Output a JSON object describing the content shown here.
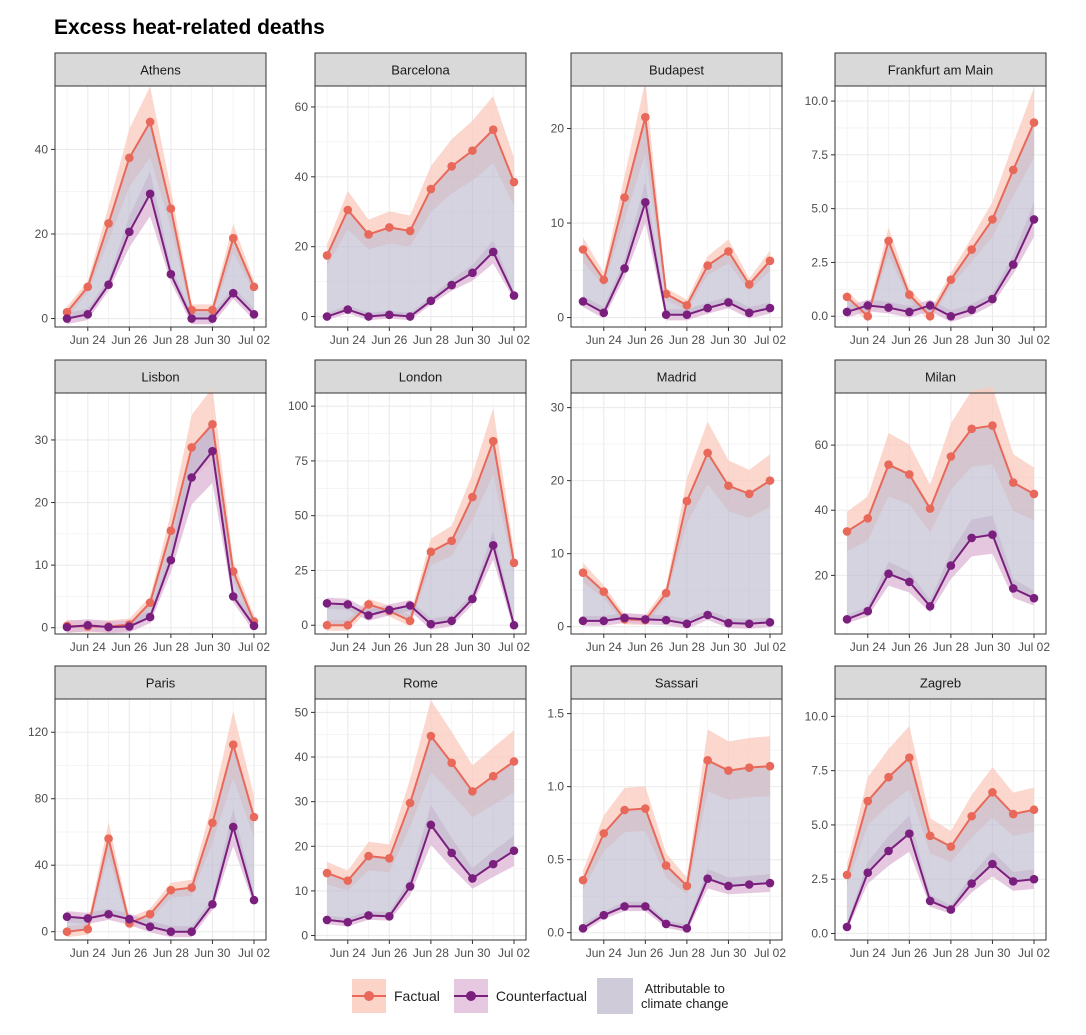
{
  "title": "Excess heat-related deaths",
  "colors": {
    "factual": "#e8685a",
    "factual_band": "#f9c9bc",
    "counterfactual": "#7b1f7e",
    "counterfactual_band": "#dcb6d6",
    "attributable": "#bfbcd0",
    "strip": "#d9d9d9",
    "grid": "#ebebeb"
  },
  "legend": {
    "factual": "Factual",
    "counterfactual": "Counterfactual",
    "attributable": "Attributable to\n climate change"
  },
  "chart_data": [
    {
      "type": "line",
      "title": "Athens",
      "x_tick_labels": [
        "Jun 24",
        "Jun 26",
        "Jun 28",
        "Jun 30",
        "Jul 02"
      ],
      "y_ticks": [
        0,
        20,
        40
      ],
      "ylim": [
        -2,
        55
      ],
      "factual": [
        1.5,
        7.5,
        22.5,
        38,
        46.5,
        26,
        2,
        2,
        19,
        7.5
      ],
      "counterfactual": [
        0,
        1,
        8,
        20.5,
        29.5,
        10.5,
        0,
        0,
        6,
        1
      ]
    },
    {
      "type": "line",
      "title": "Barcelona",
      "x_tick_labels": [
        "Jun 24",
        "Jun 26",
        "Jun 28",
        "Jun 30",
        "Jul 02"
      ],
      "y_ticks": [
        0,
        20,
        40,
        60
      ],
      "ylim": [
        -3,
        66
      ],
      "factual": [
        17.5,
        30.5,
        23.5,
        25.5,
        24.5,
        36.5,
        43,
        47.5,
        53.5,
        38.5
      ],
      "counterfactual": [
        0,
        2,
        0,
        0.5,
        0,
        4.5,
        9,
        12.5,
        18.5,
        6
      ]
    },
    {
      "type": "line",
      "title": "Budapest",
      "x_tick_labels": [
        "Jun 24",
        "Jun 26",
        "Jun 28",
        "Jun 30",
        "Jul 02"
      ],
      "y_ticks": [
        0,
        10,
        20
      ],
      "ylim": [
        -1,
        24.5
      ],
      "factual": [
        7.2,
        4,
        12.7,
        21.2,
        2.5,
        1.3,
        5.5,
        7,
        3.5,
        6
      ],
      "counterfactual": [
        1.7,
        0.5,
        5.2,
        12.2,
        0.3,
        0.3,
        1,
        1.6,
        0.5,
        1
      ]
    },
    {
      "type": "line",
      "title": "Frankfurt am Main",
      "x_tick_labels": [
        "Jun 24",
        "Jun 26",
        "Jun 28",
        "Jun 30",
        "Jul 02"
      ],
      "y_ticks": [
        0,
        2.5,
        5,
        7.5,
        10
      ],
      "y_tick_labels": [
        "0.0",
        "2.5",
        "5.0",
        "7.5",
        "10.0"
      ],
      "ylim": [
        -0.5,
        10.7
      ],
      "factual": [
        0.9,
        0,
        3.5,
        1,
        0,
        1.7,
        3.1,
        4.5,
        6.8,
        9
      ],
      "counterfactual": [
        0.2,
        0.5,
        0.4,
        0.2,
        0.5,
        0,
        0.3,
        0.8,
        2.4,
        4.5
      ]
    },
    {
      "type": "line",
      "title": "Lisbon",
      "x_tick_labels": [
        "Jun 24",
        "Jun 26",
        "Jun 28",
        "Jun 30",
        "Jul 02"
      ],
      "y_ticks": [
        0,
        10,
        20,
        30
      ],
      "ylim": [
        -1,
        37.5
      ],
      "factual": [
        0.3,
        0.2,
        0.2,
        0.5,
        4,
        15.5,
        28.8,
        32.5,
        9,
        1
      ],
      "counterfactual": [
        0.1,
        0.4,
        0.1,
        0.2,
        1.7,
        10.8,
        24,
        28.2,
        5,
        0.3
      ]
    },
    {
      "type": "line",
      "title": "London",
      "x_tick_labels": [
        "Jun 24",
        "Jun 26",
        "Jun 28",
        "Jun 30",
        "Jul 02"
      ],
      "y_ticks": [
        0,
        25,
        50,
        75,
        100
      ],
      "ylim": [
        -4,
        106
      ],
      "factual": [
        0,
        0,
        9.5,
        6.5,
        2,
        33.5,
        38.5,
        58.5,
        84,
        28.5
      ],
      "counterfactual": [
        10,
        9.5,
        4.5,
        7,
        9,
        0.5,
        2,
        12,
        36.5,
        0
      ]
    },
    {
      "type": "line",
      "title": "Madrid",
      "x_tick_labels": [
        "Jun 24",
        "Jun 26",
        "Jun 28",
        "Jun 30",
        "Jul 02"
      ],
      "y_ticks": [
        0,
        10,
        20,
        30
      ],
      "ylim": [
        -1,
        32
      ],
      "factual": [
        7.4,
        4.8,
        1,
        0.9,
        4.6,
        17.2,
        23.8,
        19.3,
        18.2,
        20
      ],
      "counterfactual": [
        0.8,
        0.8,
        1.2,
        1,
        0.9,
        0.4,
        1.6,
        0.5,
        0.4,
        0.6
      ]
    },
    {
      "type": "line",
      "title": "Milan",
      "x_tick_labels": [
        "Jun 24",
        "Jun 26",
        "Jun 28",
        "Jun 30",
        "Jul 02"
      ],
      "y_ticks": [
        20,
        40,
        60
      ],
      "ylim": [
        2,
        76
      ],
      "factual": [
        33.5,
        37.5,
        54,
        51,
        40.5,
        56.5,
        65,
        66,
        48.5,
        45
      ],
      "counterfactual": [
        6.5,
        9,
        20.5,
        18,
        10.5,
        23,
        31.5,
        32.5,
        16,
        13
      ]
    },
    {
      "type": "line",
      "title": "Paris",
      "x_tick_labels": [
        "Jun 24",
        "Jun 26",
        "Jun 28",
        "Jun 30",
        "Jul 02"
      ],
      "y_ticks": [
        0,
        40,
        80,
        120
      ],
      "ylim": [
        -5,
        140
      ],
      "factual": [
        0,
        1.5,
        56,
        5,
        10.5,
        25,
        26.5,
        65.5,
        112.5,
        69
      ],
      "counterfactual": [
        9,
        8,
        10.5,
        7.5,
        3,
        0,
        0,
        16.5,
        63,
        19
      ]
    },
    {
      "type": "line",
      "title": "Rome",
      "x_tick_labels": [
        "Jun 24",
        "Jun 26",
        "Jun 28",
        "Jun 30",
        "Jul 02"
      ],
      "y_ticks": [
        0,
        10,
        20,
        30,
        40,
        50
      ],
      "ylim": [
        -1,
        53
      ],
      "factual": [
        14,
        12.3,
        17.8,
        17.3,
        29.7,
        44.7,
        38.7,
        32.3,
        35.7,
        39
      ],
      "counterfactual": [
        3.5,
        3,
        4.5,
        4.3,
        11,
        24.8,
        18.5,
        12.8,
        16,
        19
      ]
    },
    {
      "type": "line",
      "title": "Sassari",
      "x_tick_labels": [
        "Jun 24",
        "Jun 26",
        "Jun 28",
        "Jun 30",
        "Jul 02"
      ],
      "y_ticks": [
        0,
        0.5,
        1,
        1.5
      ],
      "y_tick_labels": [
        "0.0",
        "0.5",
        "1.0",
        "1.5"
      ],
      "ylim": [
        -0.05,
        1.6
      ],
      "factual": [
        0.36,
        0.68,
        0.84,
        0.85,
        0.46,
        0.32,
        1.18,
        1.11,
        1.13,
        1.14
      ],
      "counterfactual": [
        0.03,
        0.12,
        0.18,
        0.18,
        0.06,
        0.03,
        0.37,
        0.32,
        0.33,
        0.34
      ]
    },
    {
      "type": "line",
      "title": "Zagreb",
      "x_tick_labels": [
        "Jun 24",
        "Jun 26",
        "Jun 28",
        "Jun 30",
        "Jul 02"
      ],
      "y_ticks": [
        0,
        2.5,
        5,
        7.5,
        10
      ],
      "y_tick_labels": [
        "0.0",
        "2.5",
        "5.0",
        "7.5",
        "10.0"
      ],
      "ylim": [
        -0.3,
        10.8
      ],
      "factual": [
        2.7,
        6.1,
        7.2,
        8.1,
        4.5,
        4,
        5.4,
        6.5,
        5.5,
        5.7
      ],
      "counterfactual": [
        0.3,
        2.8,
        3.8,
        4.6,
        1.5,
        1.1,
        2.3,
        3.2,
        2.4,
        2.5
      ]
    }
  ]
}
